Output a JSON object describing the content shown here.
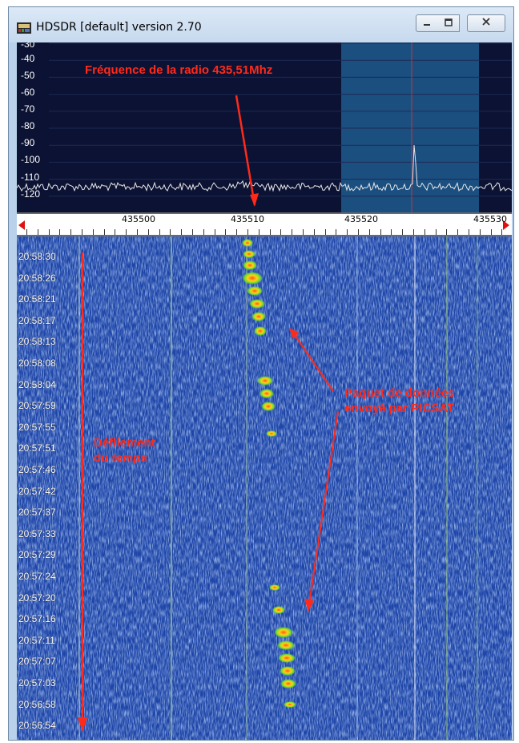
{
  "window": {
    "title": "HDSDR [default]  version 2.70",
    "icon": "hdsdr-app-icon",
    "controls": [
      "minimize-icon",
      "maximize-icon",
      "close-icon"
    ]
  },
  "spectrum": {
    "db_labels": [
      "-30",
      "-40",
      "-50",
      "-60",
      "-70",
      "-80",
      "-90",
      "-100",
      "-110",
      "-120"
    ],
    "annotation": "Fréquence de la radio 435,51Mhz"
  },
  "ruler": {
    "frequency_labels": [
      "435500",
      "435510",
      "435520",
      "435530"
    ],
    "left_arrow": "scroll-left-icon",
    "right_arrow": "scroll-right-icon"
  },
  "waterfall": {
    "time_labels": [
      "20:58:30",
      "20:58:26",
      "20:58:21",
      "20:58:17",
      "20:58:13",
      "20:58:08",
      "20:58:04",
      "20:57:59",
      "20:57:55",
      "20:57:51",
      "20:57:46",
      "20:57:42",
      "20:57:37",
      "20:57:33",
      "20:57:29",
      "20:57:24",
      "20:57:20",
      "20:57:16",
      "20:57:11",
      "20:57:07",
      "20:57:03",
      "20:56:58",
      "20:56:54"
    ],
    "annotation_time": [
      "Défilement",
      "du temps"
    ],
    "annotation_packet": [
      "Paquet de données",
      "envoyé par PICSAT"
    ]
  },
  "colors": {
    "annotation": "#ff2a1a",
    "waterfall_bg": "#1a3f9e",
    "spectrum_bg": "#0b1233",
    "highlight_band": "#1b4f80"
  }
}
